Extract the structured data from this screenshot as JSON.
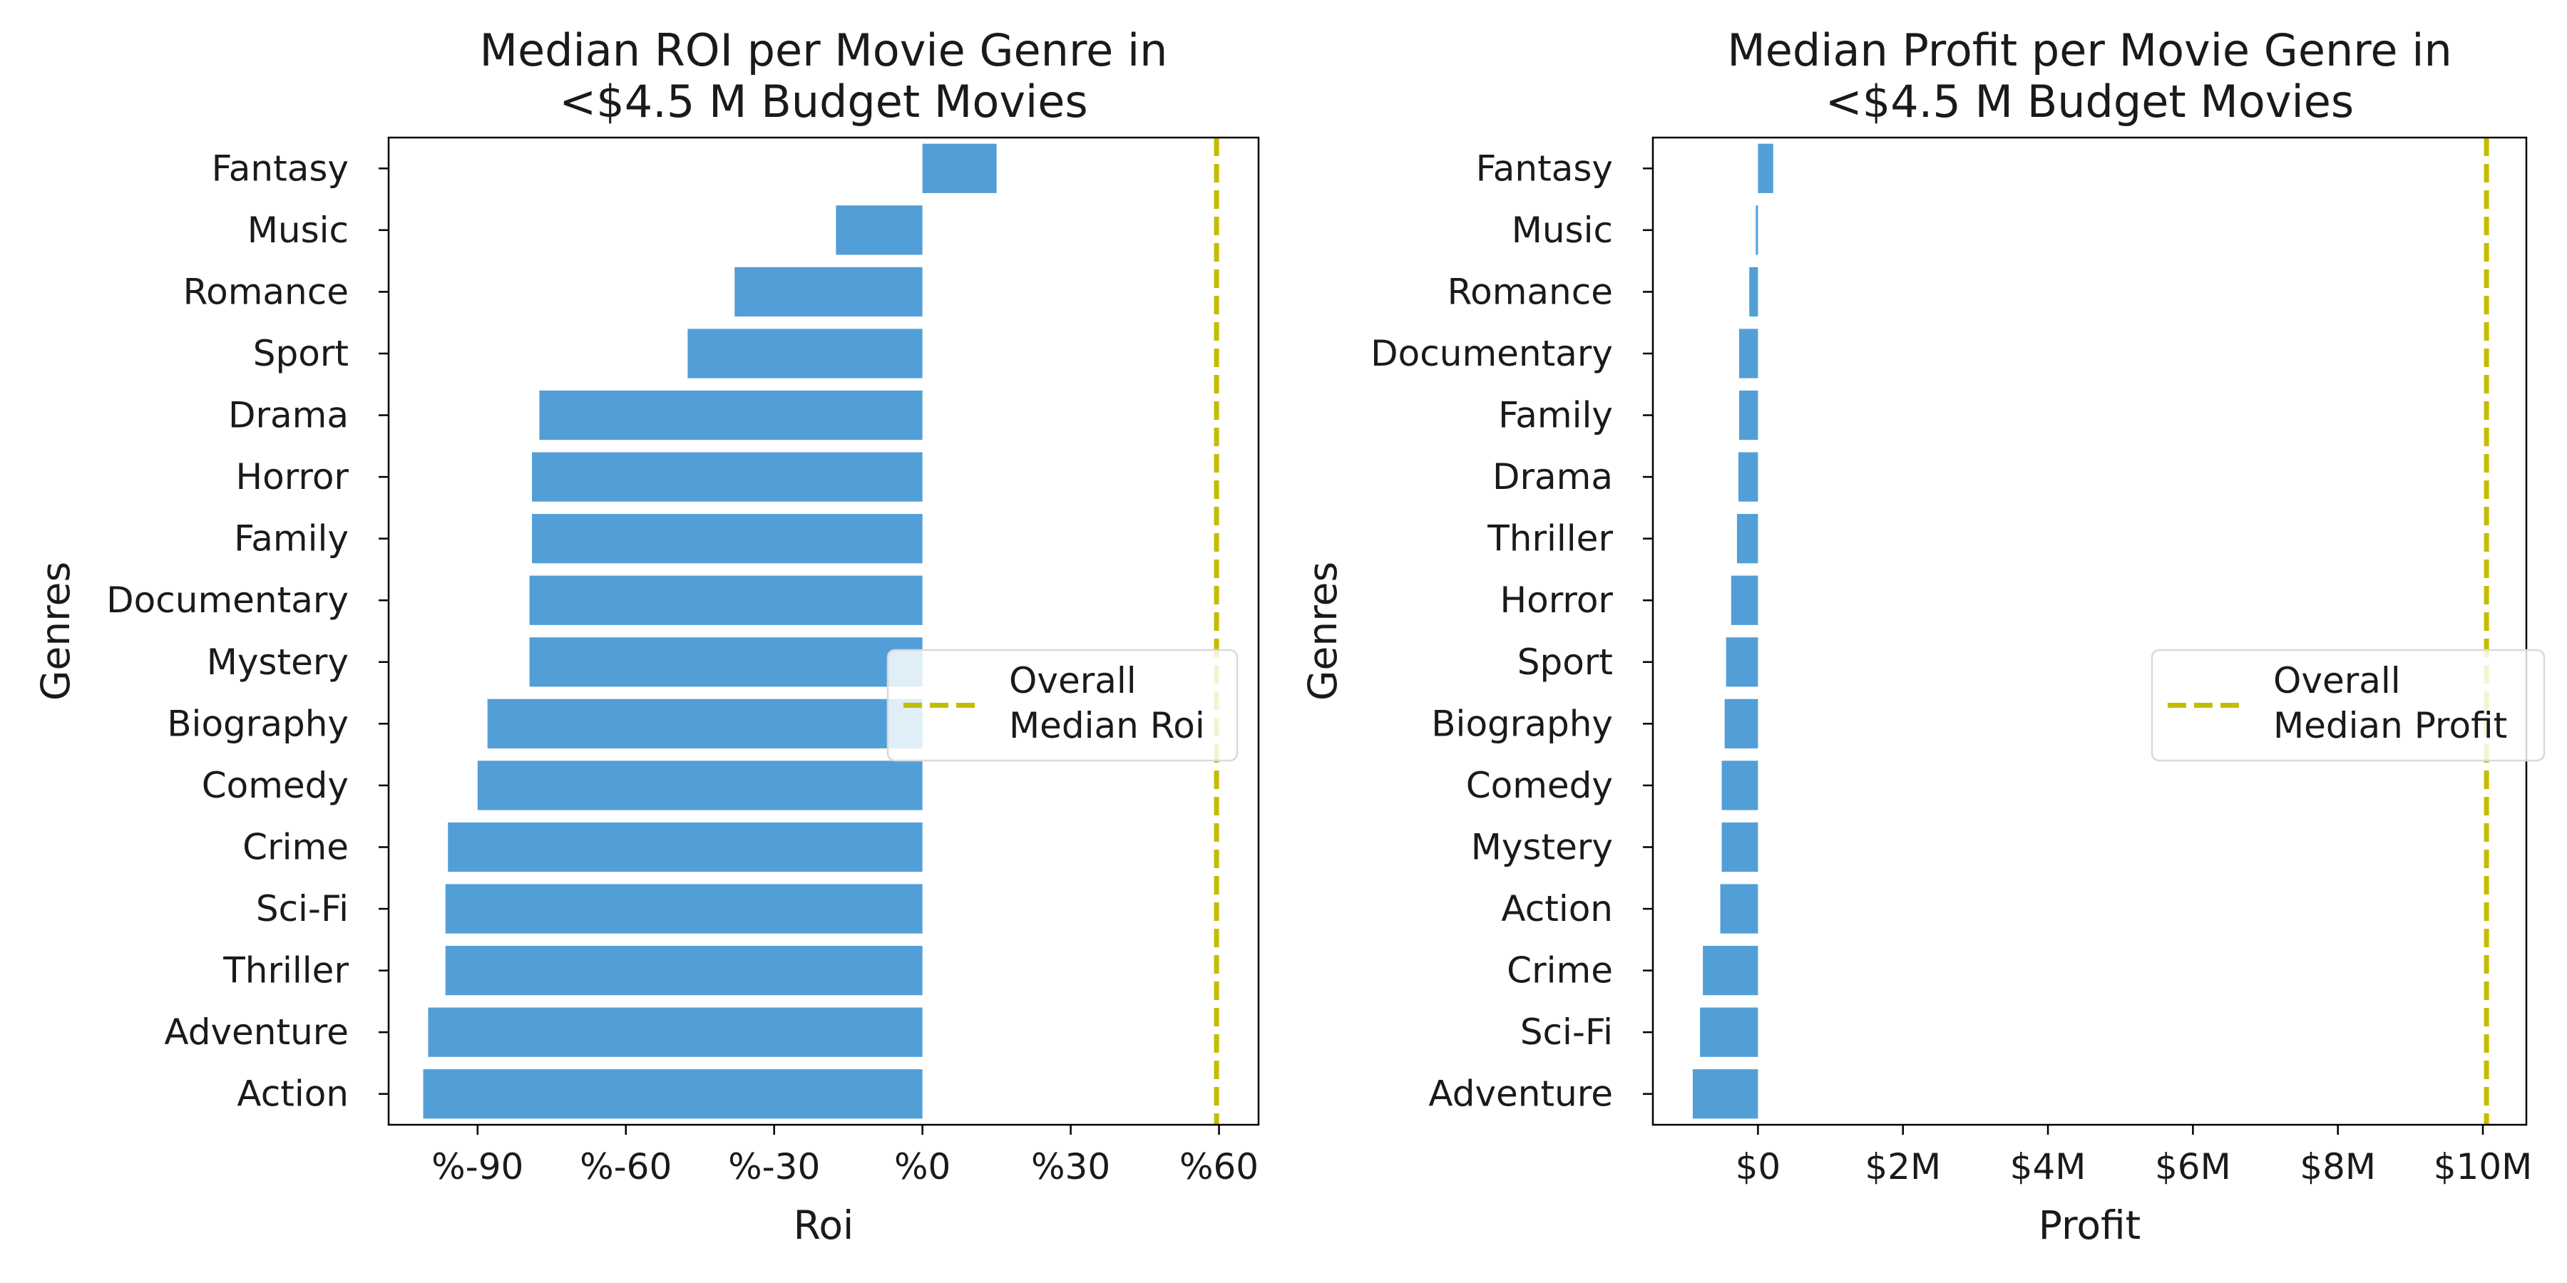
{
  "colors": {
    "bar": "#529fd8",
    "median_line": "#c4bc00",
    "axis": "#000000"
  },
  "chart_data": [
    {
      "type": "bar",
      "orientation": "horizontal",
      "title": [
        "Median ROI per Movie Genre in",
        "<$4.5 M Budget Movies"
      ],
      "xlabel": "Roi",
      "ylabel": "Genres",
      "categories": [
        "Fantasy",
        "Music",
        "Romance",
        "Sport",
        "Drama",
        "Horror",
        "Family",
        "Documentary",
        "Mystery",
        "Biography",
        "Comedy",
        "Crime",
        "Sci-Fi",
        "Thriller",
        "Adventure",
        "Action"
      ],
      "values": [
        15,
        -17.5,
        -38,
        -47.5,
        -77.5,
        -79,
        -79,
        -79.5,
        -79.5,
        -88,
        -90,
        -96,
        -96.5,
        -96.5,
        -100,
        -101
      ],
      "xlim": [
        -108,
        68
      ],
      "xticks": [
        -90,
        -60,
        -30,
        0,
        30,
        60
      ],
      "xtick_labels": [
        "%-90",
        "%-60",
        "%-30",
        "%0",
        "%30",
        "%60"
      ],
      "reference_line": {
        "value": 59.5,
        "style": "dashed"
      },
      "legend": {
        "position": "center-right",
        "entries": [
          "Overall",
          "Median Roi"
        ]
      }
    },
    {
      "type": "bar",
      "orientation": "horizontal",
      "title": [
        "Median Profit per Movie Genre in",
        "<$4.5 M Budget Movies"
      ],
      "xlabel": "Profit",
      "ylabel": "Genres",
      "categories": [
        "Fantasy",
        "Music",
        "Romance",
        "Documentary",
        "Family",
        "Drama",
        "Thriller",
        "Horror",
        "Sport",
        "Biography",
        "Comedy",
        "Mystery",
        "Action",
        "Crime",
        "Sci-Fi",
        "Adventure"
      ],
      "values": [
        210000,
        -30000,
        -120000,
        -260000,
        -260000,
        -270000,
        -290000,
        -370000,
        -440000,
        -460000,
        -500000,
        -500000,
        -520000,
        -760000,
        -800000,
        -900000
      ],
      "xlim": [
        -1450000,
        10600000
      ],
      "xticks": [
        0,
        2000000,
        4000000,
        6000000,
        8000000,
        10000000
      ],
      "xtick_labels": [
        "$0",
        "$2M",
        "$4M",
        "$6M",
        "$8M",
        "$10M"
      ],
      "reference_line": {
        "value": 10050000,
        "style": "dashed"
      },
      "legend": {
        "position": "center-right",
        "entries": [
          "Overall",
          "Median Profit"
        ]
      }
    }
  ]
}
